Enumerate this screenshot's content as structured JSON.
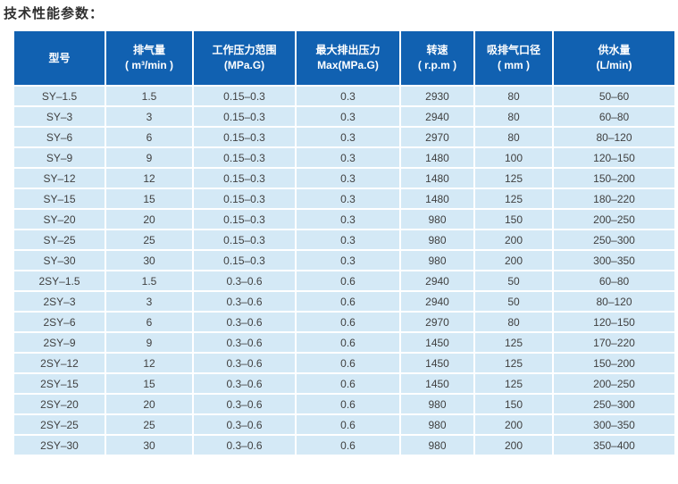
{
  "page": {
    "title": "技术性能参数："
  },
  "colors": {
    "header_bg": "#1161b1",
    "header_text": "#ffffff",
    "row_bg": "#d4e9f6",
    "grid_line": "#ffffff",
    "body_text": "#404040"
  },
  "table": {
    "columns": [
      {
        "label": "型号",
        "sub": ""
      },
      {
        "label": "排气量",
        "sub": "( m³/min )"
      },
      {
        "label": "工作压力范围",
        "sub": "(MPa.G)"
      },
      {
        "label": "最大排出压力",
        "sub": "Max(MPa.G)"
      },
      {
        "label": "转速",
        "sub": "( r.p.m )"
      },
      {
        "label": "吸排气口径",
        "sub": "( mm )"
      },
      {
        "label": "供水量",
        "sub": "(L/min)"
      }
    ],
    "rows": [
      [
        "SY–1.5",
        "1.5",
        "0.15–0.3",
        "0.3",
        "2930",
        "80",
        "50–60"
      ],
      [
        "SY–3",
        "3",
        "0.15–0.3",
        "0.3",
        "2940",
        "80",
        "60–80"
      ],
      [
        "SY–6",
        "6",
        "0.15–0.3",
        "0.3",
        "2970",
        "80",
        "80–120"
      ],
      [
        "SY–9",
        "9",
        "0.15–0.3",
        "0.3",
        "1480",
        "100",
        "120–150"
      ],
      [
        "SY–12",
        "12",
        "0.15–0.3",
        "0.3",
        "1480",
        "125",
        "150–200"
      ],
      [
        "SY–15",
        "15",
        "0.15–0.3",
        "0.3",
        "1480",
        "125",
        "180–220"
      ],
      [
        "SY–20",
        "20",
        "0.15–0.3",
        "0.3",
        "980",
        "150",
        "200–250"
      ],
      [
        "SY–25",
        "25",
        "0.15–0.3",
        "0.3",
        "980",
        "200",
        "250–300"
      ],
      [
        "SY–30",
        "30",
        "0.15–0.3",
        "0.3",
        "980",
        "200",
        "300–350"
      ],
      [
        "2SY–1.5",
        "1.5",
        "0.3–0.6",
        "0.6",
        "2940",
        "50",
        "60–80"
      ],
      [
        "2SY–3",
        "3",
        "0.3–0.6",
        "0.6",
        "2940",
        "50",
        "80–120"
      ],
      [
        "2SY–6",
        "6",
        "0.3–0.6",
        "0.6",
        "2970",
        "80",
        "120–150"
      ],
      [
        "2SY–9",
        "9",
        "0.3–0.6",
        "0.6",
        "1450",
        "125",
        "170–220"
      ],
      [
        "2SY–12",
        "12",
        "0.3–0.6",
        "0.6",
        "1450",
        "125",
        "150–200"
      ],
      [
        "2SY–15",
        "15",
        "0.3–0.6",
        "0.6",
        "1450",
        "125",
        "200–250"
      ],
      [
        "2SY–20",
        "20",
        "0.3–0.6",
        "0.6",
        "980",
        "150",
        "250–300"
      ],
      [
        "2SY–25",
        "25",
        "0.3–0.6",
        "0.6",
        "980",
        "200",
        "300–350"
      ],
      [
        "2SY–30",
        "30",
        "0.3–0.6",
        "0.6",
        "980",
        "200",
        "350–400"
      ]
    ]
  }
}
